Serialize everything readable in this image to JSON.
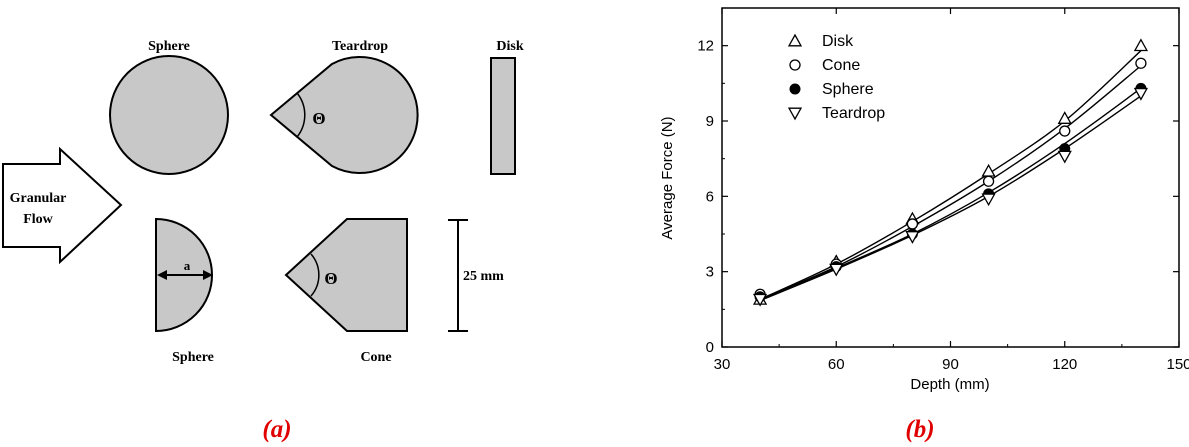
{
  "panel_a": {
    "caption": "(a)",
    "shapes": {
      "sphere_top": "Sphere",
      "teardrop": "Teardrop",
      "disk": "Disk",
      "sphere_bottom": "Sphere",
      "cone": "Cone"
    },
    "flow_label_line1": "Granular",
    "flow_label_line2": "Flow",
    "angle_symbol": "Θ",
    "dimension_a": "a",
    "scale_label": "25 mm"
  },
  "panel_b": {
    "caption": "(b)"
  },
  "colors": {
    "shape_fill": "#c8c8c8",
    "caption": "#e00000",
    "ink": "#000000"
  },
  "chart_data": {
    "type": "scatter",
    "title": "",
    "xlabel": "Depth (mm)",
    "ylabel": "Average Force (N)",
    "xlim": [
      30,
      150
    ],
    "ylim": [
      0,
      13.5
    ],
    "xticks": [
      30,
      60,
      90,
      120,
      150
    ],
    "yticks": [
      0,
      3,
      6,
      9,
      12
    ],
    "grid": false,
    "legend_position": "top-left",
    "x": [
      40,
      60,
      80,
      100,
      120,
      140
    ],
    "series": [
      {
        "name": "Disk",
        "marker": "triangle-up",
        "values": [
          1.9,
          3.4,
          5.1,
          7.0,
          9.1,
          12.0
        ]
      },
      {
        "name": "Cone",
        "marker": "circle-open",
        "values": [
          2.1,
          3.3,
          4.9,
          6.6,
          8.6,
          11.3
        ]
      },
      {
        "name": "Sphere",
        "marker": "circle-filled",
        "values": [
          2.0,
          3.2,
          4.5,
          6.1,
          7.9,
          10.3
        ]
      },
      {
        "name": "Teardrop",
        "marker": "triangle-down",
        "values": [
          1.9,
          3.1,
          4.4,
          5.9,
          7.6,
          10.1
        ]
      }
    ],
    "fit_curves": [
      [
        1.9,
        3.3,
        5.0,
        6.9,
        9.0,
        11.8
      ],
      [
        1.9,
        3.2,
        4.8,
        6.6,
        8.7,
        11.2
      ],
      [
        1.9,
        3.15,
        4.5,
        6.15,
        8.1,
        10.3
      ],
      [
        1.85,
        3.1,
        4.45,
        6.0,
        7.9,
        10.0
      ]
    ]
  }
}
